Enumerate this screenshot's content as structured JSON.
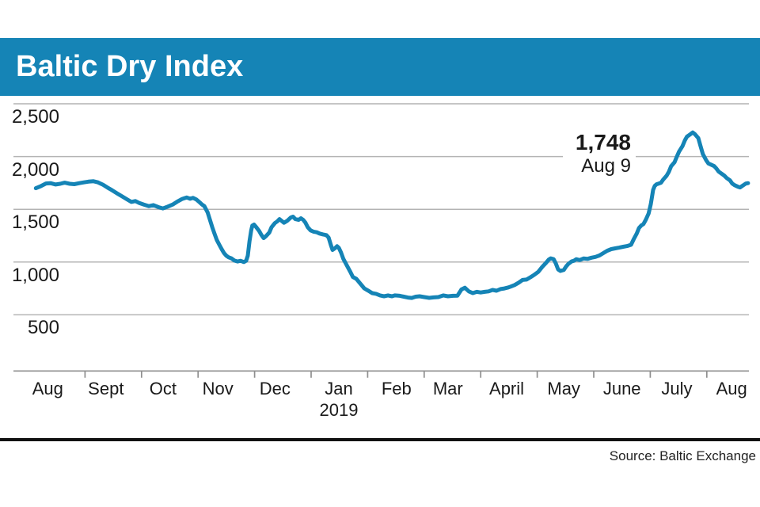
{
  "header": {
    "title": "Baltic Dry Index"
  },
  "annotation": {
    "value": "1,748",
    "date": "Aug 9"
  },
  "source": {
    "label": "Source: Baltic Exchange"
  },
  "colors": {
    "banner": "#1584b6",
    "banner_text": "#ffffff",
    "line": "#1584b6",
    "grid": "#b4b4b4",
    "axis": "#8f8f8f",
    "rule": "#111111",
    "text": "#1a1a1a"
  },
  "chart_data": {
    "type": "line",
    "title": "Baltic Dry Index",
    "xlabel": "",
    "ylabel": "",
    "grid": "horizontal",
    "legend": "none",
    "x_unit": "months since Aug 1 2018 (0 = Aug 2018, 12 = Aug 2019)",
    "ylim": [
      0,
      2600
    ],
    "y_axis": {
      "ticks": [
        {
          "value": 2500,
          "label": "2,500"
        },
        {
          "value": 2000,
          "label": "2,000"
        },
        {
          "value": 1500,
          "label": "1,500"
        },
        {
          "value": 1000,
          "label": "1,000"
        },
        {
          "value": 500,
          "label": "500"
        }
      ]
    },
    "x_axis": {
      "tick_months": [
        1,
        2,
        3,
        4,
        5,
        6,
        7,
        8,
        9,
        10,
        11,
        12
      ],
      "labels": [
        {
          "label": "Aug",
          "m": 0.34
        },
        {
          "label": "Sept",
          "m": 1.37
        },
        {
          "label": "Oct",
          "m": 2.38
        },
        {
          "label": "Nov",
          "m": 3.35
        },
        {
          "label": "Dec",
          "m": 4.36
        },
        {
          "label": "Jan",
          "m": 5.49
        },
        {
          "label": "Feb",
          "m": 6.51
        },
        {
          "label": "Mar",
          "m": 7.42
        },
        {
          "label": "April",
          "m": 8.46
        },
        {
          "label": "May",
          "m": 9.47
        },
        {
          "label": "June",
          "m": 10.5
        },
        {
          "label": "July",
          "m": 11.47
        },
        {
          "label": "Aug",
          "m": 12.44
        }
      ],
      "sub_label": {
        "label": "2019",
        "m": 5.49
      }
    },
    "annotation": {
      "text": "1,748",
      "sub": "Aug 9",
      "value": 1748,
      "date": "Aug 9 2019"
    },
    "series": [
      {
        "name": "Baltic Dry Index",
        "points": [
          [
            0.13,
            1700
          ],
          [
            0.22,
            1720
          ],
          [
            0.31,
            1745
          ],
          [
            0.39,
            1748
          ],
          [
            0.48,
            1735
          ],
          [
            0.56,
            1742
          ],
          [
            0.64,
            1752
          ],
          [
            0.73,
            1742
          ],
          [
            0.81,
            1738
          ],
          [
            0.9,
            1748
          ],
          [
            0.98,
            1755
          ],
          [
            1.06,
            1762
          ],
          [
            1.15,
            1766
          ],
          [
            1.23,
            1755
          ],
          [
            1.32,
            1732
          ],
          [
            1.4,
            1705
          ],
          [
            1.48,
            1680
          ],
          [
            1.57,
            1650
          ],
          [
            1.65,
            1625
          ],
          [
            1.74,
            1595
          ],
          [
            1.82,
            1570
          ],
          [
            1.89,
            1578
          ],
          [
            1.96,
            1560
          ],
          [
            2.04,
            1545
          ],
          [
            2.13,
            1530
          ],
          [
            2.21,
            1540
          ],
          [
            2.3,
            1520
          ],
          [
            2.38,
            1508
          ],
          [
            2.46,
            1525
          ],
          [
            2.55,
            1545
          ],
          [
            2.63,
            1572
          ],
          [
            2.72,
            1598
          ],
          [
            2.8,
            1612
          ],
          [
            2.86,
            1600
          ],
          [
            2.91,
            1608
          ],
          [
            2.97,
            1592
          ],
          [
            3.03,
            1565
          ],
          [
            3.07,
            1545
          ],
          [
            3.11,
            1530
          ],
          [
            3.17,
            1470
          ],
          [
            3.21,
            1400
          ],
          [
            3.25,
            1330
          ],
          [
            3.29,
            1270
          ],
          [
            3.33,
            1210
          ],
          [
            3.38,
            1160
          ],
          [
            3.42,
            1120
          ],
          [
            3.46,
            1085
          ],
          [
            3.5,
            1060
          ],
          [
            3.54,
            1045
          ],
          [
            3.59,
            1035
          ],
          [
            3.64,
            1015
          ],
          [
            3.7,
            1005
          ],
          [
            3.75,
            1012
          ],
          [
            3.81,
            1000
          ],
          [
            3.85,
            1012
          ],
          [
            3.88,
            1060
          ],
          [
            3.91,
            1200
          ],
          [
            3.94,
            1300
          ],
          [
            3.96,
            1345
          ],
          [
            3.99,
            1355
          ],
          [
            4.03,
            1330
          ],
          [
            4.08,
            1295
          ],
          [
            4.12,
            1257
          ],
          [
            4.16,
            1227
          ],
          [
            4.2,
            1245
          ],
          [
            4.26,
            1280
          ],
          [
            4.3,
            1330
          ],
          [
            4.36,
            1370
          ],
          [
            4.4,
            1385
          ],
          [
            4.44,
            1407
          ],
          [
            4.48,
            1390
          ],
          [
            4.52,
            1372
          ],
          [
            4.58,
            1392
          ],
          [
            4.64,
            1422
          ],
          [
            4.68,
            1430
          ],
          [
            4.72,
            1407
          ],
          [
            4.78,
            1400
          ],
          [
            4.82,
            1415
          ],
          [
            4.86,
            1400
          ],
          [
            4.9,
            1372
          ],
          [
            4.94,
            1330
          ],
          [
            4.99,
            1300
          ],
          [
            5.04,
            1288
          ],
          [
            5.1,
            1282
          ],
          [
            5.15,
            1270
          ],
          [
            5.21,
            1262
          ],
          [
            5.27,
            1255
          ],
          [
            5.31,
            1232
          ],
          [
            5.35,
            1160
          ],
          [
            5.38,
            1115
          ],
          [
            5.42,
            1130
          ],
          [
            5.46,
            1150
          ],
          [
            5.49,
            1135
          ],
          [
            5.53,
            1090
          ],
          [
            5.57,
            1030
          ],
          [
            5.63,
            970
          ],
          [
            5.69,
            910
          ],
          [
            5.74,
            858
          ],
          [
            5.8,
            841
          ],
          [
            5.87,
            796
          ],
          [
            5.94,
            751
          ],
          [
            6.01,
            729
          ],
          [
            6.08,
            706
          ],
          [
            6.15,
            699
          ],
          [
            6.22,
            684
          ],
          [
            6.29,
            676
          ],
          [
            6.36,
            684
          ],
          [
            6.43,
            676
          ],
          [
            6.48,
            684
          ],
          [
            6.57,
            680
          ],
          [
            6.64,
            672
          ],
          [
            6.71,
            664
          ],
          [
            6.78,
            660
          ],
          [
            6.85,
            672
          ],
          [
            6.92,
            676
          ],
          [
            7.0,
            668
          ],
          [
            7.09,
            661
          ],
          [
            7.17,
            665
          ],
          [
            7.25,
            668
          ],
          [
            7.34,
            684
          ],
          [
            7.42,
            676
          ],
          [
            7.51,
            680
          ],
          [
            7.59,
            682
          ],
          [
            7.66,
            740
          ],
          [
            7.72,
            757
          ],
          [
            7.79,
            722
          ],
          [
            7.86,
            706
          ],
          [
            7.93,
            718
          ],
          [
            8.0,
            712
          ],
          [
            8.07,
            718
          ],
          [
            8.14,
            722
          ],
          [
            8.21,
            736
          ],
          [
            8.28,
            728
          ],
          [
            8.35,
            744
          ],
          [
            8.42,
            750
          ],
          [
            8.49,
            760
          ],
          [
            8.53,
            767
          ],
          [
            8.6,
            782
          ],
          [
            8.67,
            804
          ],
          [
            8.74,
            830
          ],
          [
            8.81,
            834
          ],
          [
            8.88,
            856
          ],
          [
            8.95,
            880
          ],
          [
            9.02,
            908
          ],
          [
            9.09,
            955
          ],
          [
            9.16,
            995
          ],
          [
            9.2,
            1022
          ],
          [
            9.24,
            1035
          ],
          [
            9.29,
            1028
          ],
          [
            9.33,
            985
          ],
          [
            9.37,
            930
          ],
          [
            9.41,
            916
          ],
          [
            9.47,
            926
          ],
          [
            9.51,
            957
          ],
          [
            9.55,
            983
          ],
          [
            9.61,
            1007
          ],
          [
            9.65,
            1012
          ],
          [
            9.69,
            1027
          ],
          [
            9.75,
            1019
          ],
          [
            9.82,
            1034
          ],
          [
            9.89,
            1030
          ],
          [
            9.96,
            1041
          ],
          [
            10.03,
            1049
          ],
          [
            10.1,
            1062
          ],
          [
            10.17,
            1085
          ],
          [
            10.24,
            1107
          ],
          [
            10.31,
            1122
          ],
          [
            10.38,
            1130
          ],
          [
            10.45,
            1137
          ],
          [
            10.52,
            1145
          ],
          [
            10.59,
            1152
          ],
          [
            10.66,
            1164
          ],
          [
            10.71,
            1220
          ],
          [
            10.76,
            1270
          ],
          [
            10.8,
            1322
          ],
          [
            10.84,
            1347
          ],
          [
            10.88,
            1360
          ],
          [
            10.92,
            1400
          ],
          [
            10.97,
            1460
          ],
          [
            11.01,
            1550
          ],
          [
            11.05,
            1684
          ],
          [
            11.08,
            1722
          ],
          [
            11.11,
            1737
          ],
          [
            11.15,
            1744
          ],
          [
            11.19,
            1752
          ],
          [
            11.23,
            1782
          ],
          [
            11.29,
            1819
          ],
          [
            11.33,
            1857
          ],
          [
            11.37,
            1909
          ],
          [
            11.43,
            1947
          ],
          [
            11.47,
            2000
          ],
          [
            11.51,
            2047
          ],
          [
            11.57,
            2099
          ],
          [
            11.61,
            2152
          ],
          [
            11.65,
            2189
          ],
          [
            11.71,
            2212
          ],
          [
            11.75,
            2228
          ],
          [
            11.79,
            2212
          ],
          [
            11.85,
            2174
          ],
          [
            11.89,
            2099
          ],
          [
            11.93,
            2024
          ],
          [
            11.99,
            1964
          ],
          [
            12.03,
            1934
          ],
          [
            12.07,
            1924
          ],
          [
            12.13,
            1909
          ],
          [
            12.17,
            1887
          ],
          [
            12.21,
            1857
          ],
          [
            12.27,
            1834
          ],
          [
            12.31,
            1819
          ],
          [
            12.35,
            1797
          ],
          [
            12.41,
            1774
          ],
          [
            12.45,
            1744
          ],
          [
            12.49,
            1729
          ],
          [
            12.55,
            1714
          ],
          [
            12.59,
            1707
          ],
          [
            12.63,
            1722
          ],
          [
            12.69,
            1744
          ],
          [
            12.73,
            1748
          ]
        ]
      }
    ]
  }
}
